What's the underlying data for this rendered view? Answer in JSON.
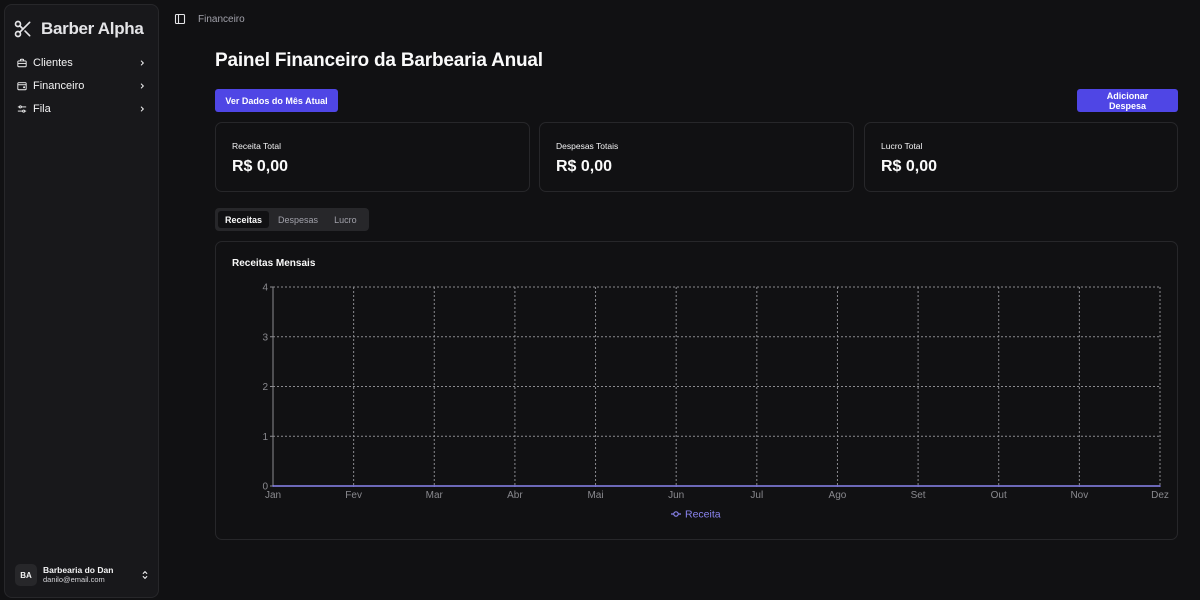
{
  "sidebar": {
    "brand": "Barber Alpha",
    "items": [
      {
        "label": "Clientes",
        "icon": "briefcase-icon"
      },
      {
        "label": "Financeiro",
        "icon": "wallet-icon"
      },
      {
        "label": "Fila",
        "icon": "sliders-icon"
      }
    ],
    "user": {
      "initials": "BA",
      "name": "Barbearia do Dan",
      "email": "danilo@email.com"
    }
  },
  "header": {
    "breadcrumb": "Financeiro"
  },
  "main": {
    "title": "Painel Financeiro da Barbearia Anual",
    "buttons": {
      "month": "Ver Dados do Mês Atual",
      "expense": "Adicionar Despesa"
    },
    "cards": [
      {
        "label": "Receita Total",
        "value": "R$ 0,00"
      },
      {
        "label": "Despesas Totais",
        "value": "R$ 0,00"
      },
      {
        "label": "Lucro Total",
        "value": "R$ 0,00"
      }
    ],
    "tabs": [
      {
        "label": "Receitas",
        "active": true
      },
      {
        "label": "Despesas",
        "active": false
      },
      {
        "label": "Lucro",
        "active": false
      }
    ]
  },
  "chart_data": {
    "type": "line",
    "title": "Receitas Mensais",
    "xlabel": "",
    "ylabel": "",
    "categories": [
      "Jan",
      "Fev",
      "Mar",
      "Abr",
      "Mai",
      "Jun",
      "Jul",
      "Ago",
      "Set",
      "Out",
      "Nov",
      "Dez"
    ],
    "series": [
      {
        "name": "Receita",
        "values": [
          0,
          0,
          0,
          0,
          0,
          0,
          0,
          0,
          0,
          0,
          0,
          0
        ],
        "color": "#8b85f0"
      }
    ],
    "ylim": [
      0,
      4
    ],
    "yticks": [
      "0",
      "1",
      "2",
      "3",
      "4"
    ],
    "grid": true,
    "legend": "bottom"
  },
  "colors": {
    "accent": "#4f46e5",
    "series": "#8b85f0"
  }
}
